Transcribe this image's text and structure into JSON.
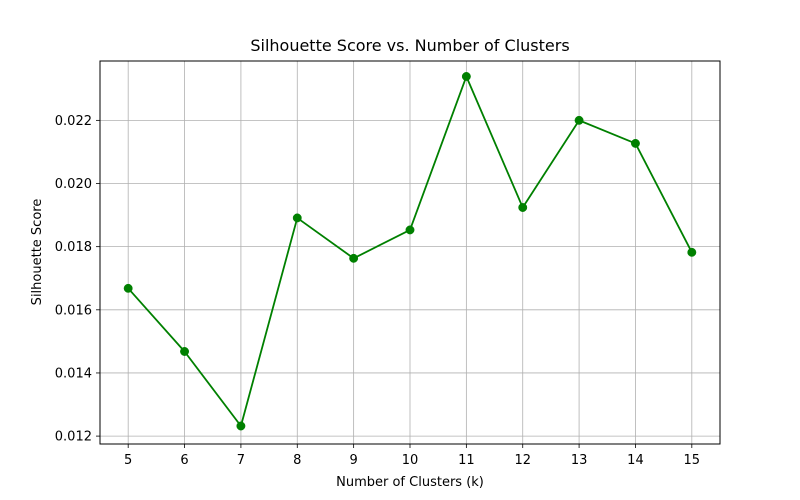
{
  "chart_data": {
    "type": "line",
    "title": "Silhouette Score vs. Number of Clusters",
    "xlabel": "Number of Clusters (k)",
    "ylabel": "Silhouette Score",
    "x": [
      5,
      6,
      7,
      8,
      9,
      10,
      11,
      12,
      13,
      14,
      15
    ],
    "series": [
      {
        "values": [
          0.01668,
          0.01468,
          0.01232,
          0.01891,
          0.01763,
          0.01853,
          0.02339,
          0.01924,
          0.022,
          0.02127,
          0.01782
        ]
      }
    ],
    "xlim": [
      4.5,
      15.5
    ],
    "ylim": [
      0.01175,
      0.02388
    ],
    "xticks": [
      "5",
      "6",
      "7",
      "8",
      "9",
      "10",
      "11",
      "12",
      "13",
      "14",
      "15"
    ],
    "yticks": [
      "0.012",
      "0.014",
      "0.016",
      "0.018",
      "0.020",
      "0.022"
    ],
    "ytick_values": [
      0.012,
      0.014,
      0.016,
      0.018,
      0.02,
      0.022
    ],
    "grid": true,
    "line_color": "#008000",
    "marker": "circle",
    "grid_color": "#b0b0b0",
    "axis_color": "#000000"
  }
}
